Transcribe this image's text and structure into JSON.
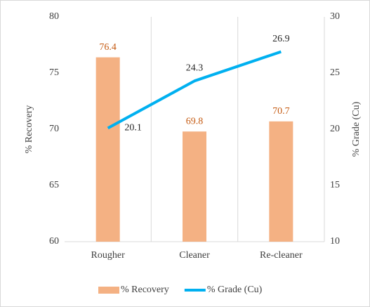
{
  "chart_data": {
    "type": "bar",
    "categories": [
      "Rougher",
      "Cleaner",
      "Re-cleaner"
    ],
    "series": [
      {
        "name": "% Recovery",
        "color": "#f4b183",
        "label_color": "#c55a11",
        "values": [
          76.4,
          69.8,
          70.7
        ]
      },
      {
        "name": "% Grade (Cu)",
        "color": "#00b0f0",
        "label_color": "#262626",
        "type": "line",
        "axis": "y2",
        "values": [
          20.1,
          24.3,
          26.9
        ]
      }
    ],
    "ylabel": "% Recovery",
    "y2label": "% Grade (Cu)",
    "ylim": [
      60,
      80
    ],
    "yticks": [
      60,
      65,
      70,
      75,
      80
    ],
    "y2lim": [
      10,
      30
    ],
    "y2ticks": [
      10,
      15,
      20,
      25,
      30
    ],
    "grid": true,
    "legend": "bottom"
  }
}
